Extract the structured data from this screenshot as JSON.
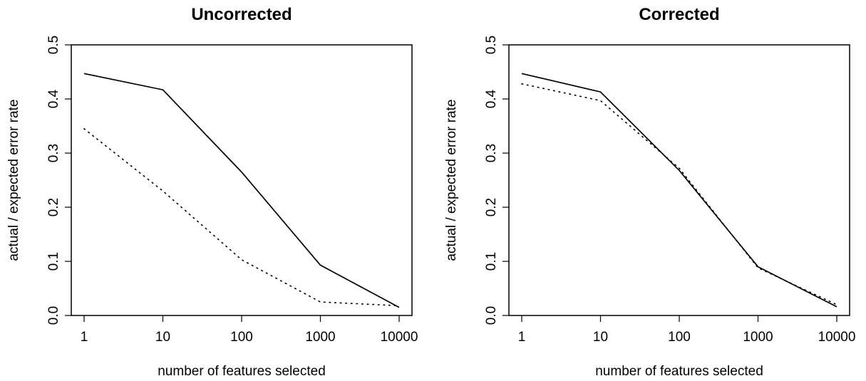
{
  "colors": {
    "line": "#000000",
    "background": "#ffffff"
  },
  "chart_data": [
    {
      "type": "line",
      "title": "Uncorrected",
      "xlabel": "number of features selected",
      "ylabel": "actual / expected error rate",
      "x_scale": "log10",
      "x": [
        1,
        10,
        100,
        1000,
        10000
      ],
      "x_tick_labels": [
        "1",
        "10",
        "100",
        "1000",
        "10000"
      ],
      "y_tick_labels": [
        "0.0",
        "0.1",
        "0.2",
        "0.3",
        "0.4",
        "0.5"
      ],
      "ylim": [
        0,
        0.5
      ],
      "grid": false,
      "series": [
        {
          "style": "solid",
          "values": [
            0.447,
            0.417,
            0.265,
            0.093,
            0.015
          ]
        },
        {
          "style": "dotted",
          "values": [
            0.345,
            0.23,
            0.103,
            0.025,
            0.018
          ]
        }
      ]
    },
    {
      "type": "line",
      "title": "Corrected",
      "xlabel": "number of features selected",
      "ylabel": "actual / expected error rate",
      "x_scale": "log10",
      "x": [
        1,
        10,
        100,
        1000,
        10000
      ],
      "x_tick_labels": [
        "1",
        "10",
        "100",
        "1000",
        "10000"
      ],
      "y_tick_labels": [
        "0.0",
        "0.1",
        "0.2",
        "0.3",
        "0.4",
        "0.5"
      ],
      "ylim": [
        0,
        0.5
      ],
      "grid": false,
      "series": [
        {
          "style": "solid",
          "values": [
            0.447,
            0.413,
            0.268,
            0.09,
            0.016
          ]
        },
        {
          "style": "dotted",
          "values": [
            0.428,
            0.397,
            0.272,
            0.088,
            0.02
          ]
        }
      ]
    }
  ]
}
